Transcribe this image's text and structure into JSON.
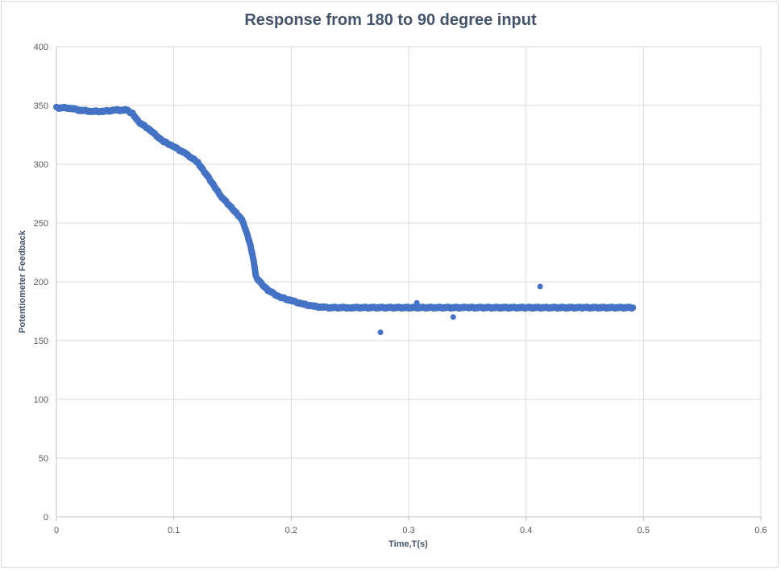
{
  "chart_data": {
    "type": "scatter",
    "title": "Response from 180 to 90 degree input",
    "xlabel": "Time,T(s)",
    "ylabel": "Potentiometer Feedback",
    "xlim": [
      0,
      0.6
    ],
    "ylim": [
      0,
      400
    ],
    "xticks": [
      "0",
      "0.1",
      "0.2",
      "0.3",
      "0.4",
      "0.5",
      "0.6"
    ],
    "yticks": [
      "0",
      "50",
      "100",
      "150",
      "200",
      "250",
      "300",
      "350",
      "400"
    ],
    "grid": true,
    "legend": "none",
    "series": [
      {
        "color": "#4472c4",
        "curve": [
          [
            0.0,
            348
          ],
          [
            0.01,
            348
          ],
          [
            0.02,
            346
          ],
          [
            0.03,
            345
          ],
          [
            0.04,
            345
          ],
          [
            0.05,
            346
          ],
          [
            0.06,
            346
          ],
          [
            0.065,
            343
          ],
          [
            0.07,
            336
          ],
          [
            0.08,
            329
          ],
          [
            0.09,
            320
          ],
          [
            0.1,
            315
          ],
          [
            0.11,
            309
          ],
          [
            0.12,
            302
          ],
          [
            0.13,
            288
          ],
          [
            0.14,
            273
          ],
          [
            0.15,
            262
          ],
          [
            0.158,
            253
          ],
          [
            0.162,
            242
          ],
          [
            0.165,
            232
          ],
          [
            0.168,
            218
          ],
          [
            0.17,
            204
          ],
          [
            0.175,
            198
          ],
          [
            0.18,
            193
          ],
          [
            0.19,
            187
          ],
          [
            0.2,
            184
          ],
          [
            0.21,
            181
          ],
          [
            0.22,
            179
          ],
          [
            0.23,
            178
          ],
          [
            0.25,
            178
          ],
          [
            0.3,
            178
          ],
          [
            0.35,
            178
          ],
          [
            0.4,
            178
          ],
          [
            0.45,
            178
          ],
          [
            0.491,
            178
          ]
        ],
        "outliers": [
          [
            0.276,
            157
          ],
          [
            0.307,
            182
          ],
          [
            0.338,
            170
          ],
          [
            0.412,
            196
          ]
        ]
      }
    ]
  }
}
